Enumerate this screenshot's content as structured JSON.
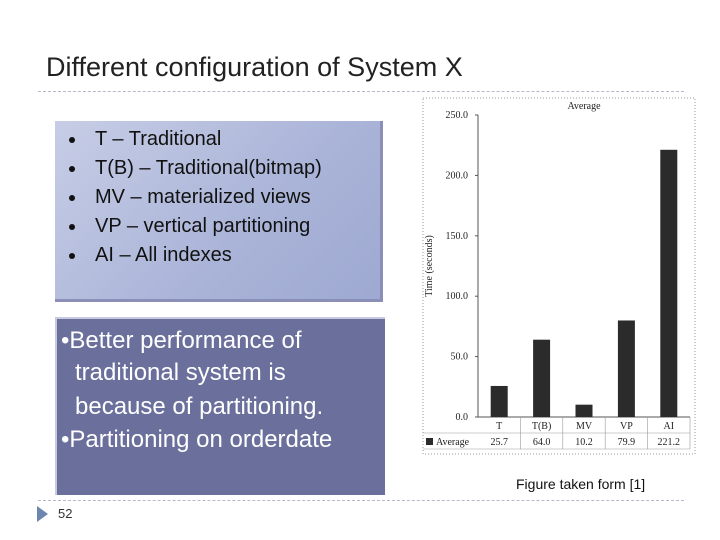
{
  "slide": {
    "title": "Different configuration of System X",
    "bullets": [
      "T – Traditional",
      "T(B) – Traditional(bitmap)",
      "MV – materialized views",
      "VP – vertical partitioning",
      "AI – All indexes"
    ],
    "note_lines": [
      "•Better performance of",
      "traditional system is",
      "because of partitioning.",
      "•Partitioning on orderdate"
    ],
    "caption": "Figure taken form [1]",
    "page_number": "52"
  },
  "colors": {
    "bar": "#2b2b2b",
    "note_box": "#6a6f9c",
    "bullets_box": "#b3bcdf"
  },
  "chart_data": {
    "type": "bar",
    "title": "Average",
    "xlabel": "",
    "ylabel": "Time (seconds)",
    "ylim": [
      0,
      250
    ],
    "yticks": [
      0,
      50,
      100,
      150,
      200,
      250
    ],
    "ytick_labels": [
      "0.0",
      "50.0",
      "100.0",
      "150.0",
      "200.0",
      "250.0"
    ],
    "categories": [
      "T",
      "T(B)",
      "MV",
      "VP",
      "AI"
    ],
    "series": [
      {
        "name": "Average",
        "values": [
          25.7,
          64.0,
          10.2,
          79.9,
          221.2
        ],
        "value_labels": [
          "25.7",
          "64.0",
          "10.2",
          "79.9",
          "221.2"
        ]
      }
    ],
    "grid": false,
    "legend": "bottom-left data table"
  }
}
